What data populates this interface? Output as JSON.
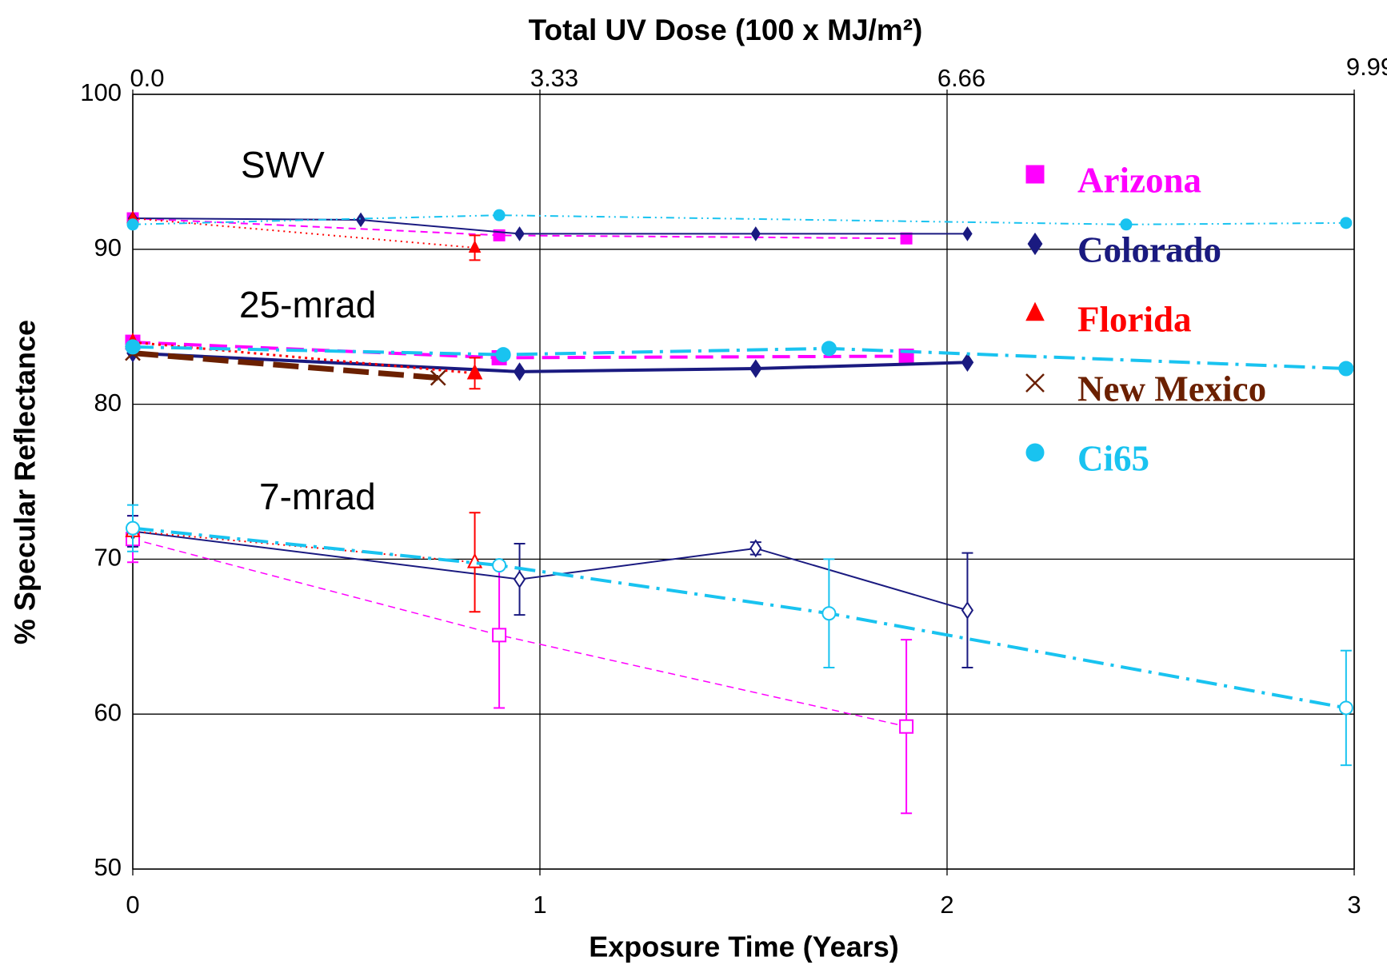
{
  "chart_data": {
    "type": "line",
    "title": "Total UV Dose  (100 x MJ/m²)",
    "xlabel": "Exposure Time (Years)",
    "ylabel": "% Specular Reflectance",
    "xlim": [
      0,
      3
    ],
    "xticks": [
      0,
      1,
      2,
      3
    ],
    "x2lim": [
      0,
      9.99
    ],
    "x2ticks": [
      {
        "value": 0,
        "label": "0.0"
      },
      3.33,
      6.66,
      9.99
    ],
    "ylim": [
      50,
      100
    ],
    "yticks": [
      50,
      60,
      70,
      80,
      90,
      100
    ],
    "grid": true,
    "groups": [
      "SWV",
      "25-mrad",
      "7-mrad"
    ],
    "series": [
      {
        "name": "Arizona",
        "color": "#ff00ff",
        "marker": "square",
        "curves": [
          {
            "x": [
              0,
              0.9,
              1.9
            ],
            "values": [
              92,
              90.9,
              90.7
            ]
          },
          {
            "x": [
              0,
              0.9,
              1.9
            ],
            "values": [
              84,
              83,
              83.1
            ]
          },
          {
            "x": [
              0,
              0.9,
              1.9
            ],
            "values": [
              71.3,
              65.1,
              59.2
            ],
            "errors": [
              1.5,
              4.7,
              5.6
            ]
          }
        ]
      },
      {
        "name": "Colorado",
        "color": "#1a1a80",
        "marker": "diamond",
        "curves": [
          {
            "x": [
              0,
              0.56,
              0.95,
              1.53,
              2.05
            ],
            "values": [
              92,
              91.9,
              91,
              91,
              91
            ]
          },
          {
            "x": [
              0,
              0.95,
              1.53,
              2.05
            ],
            "values": [
              83.3,
              82.1,
              82.3,
              82.7
            ]
          },
          {
            "x": [
              0,
              0.95,
              1.53,
              2.05
            ],
            "values": [
              71.8,
              68.7,
              70.7,
              66.7
            ],
            "errors": [
              1,
              2.3,
              0.4,
              3.7
            ]
          }
        ]
      },
      {
        "name": "Florida",
        "color": "#ff0000",
        "marker": "triangle",
        "curves": [
          {
            "x": [
              0,
              0.84
            ],
            "values": [
              92,
              90.1
            ],
            "errors": [
              null,
              0.8
            ]
          },
          {
            "x": [
              0,
              0.84
            ],
            "values": [
              84,
              82
            ],
            "errors": [
              null,
              1
            ]
          },
          {
            "x": [
              0,
              0.84
            ],
            "values": [
              71.8,
              69.8
            ],
            "errors": [
              null,
              3.2
            ]
          }
        ]
      },
      {
        "name": "New Mexico",
        "color": "#6b2000",
        "marker": "x",
        "curves": [
          null,
          {
            "x": [
              0,
              0.75
            ],
            "values": [
              83.3,
              81.7
            ]
          },
          null
        ]
      },
      {
        "name": "Ci65",
        "color": "#19c3f0",
        "marker": "circle",
        "curves": [
          {
            "x": [
              0,
              0.9,
              2.44,
              2.98
            ],
            "values": [
              91.6,
              92.2,
              91.6,
              91.7
            ]
          },
          {
            "x": [
              0,
              0.91,
              1.71,
              2.98
            ],
            "values": [
              83.7,
              83.2,
              83.6,
              82.3
            ]
          },
          {
            "x": [
              0,
              0.9,
              1.71,
              2.98
            ],
            "values": [
              72,
              69.6,
              66.5,
              60.4
            ],
            "errors": [
              1.5,
              null,
              3.5,
              3.7
            ]
          }
        ]
      }
    ]
  }
}
